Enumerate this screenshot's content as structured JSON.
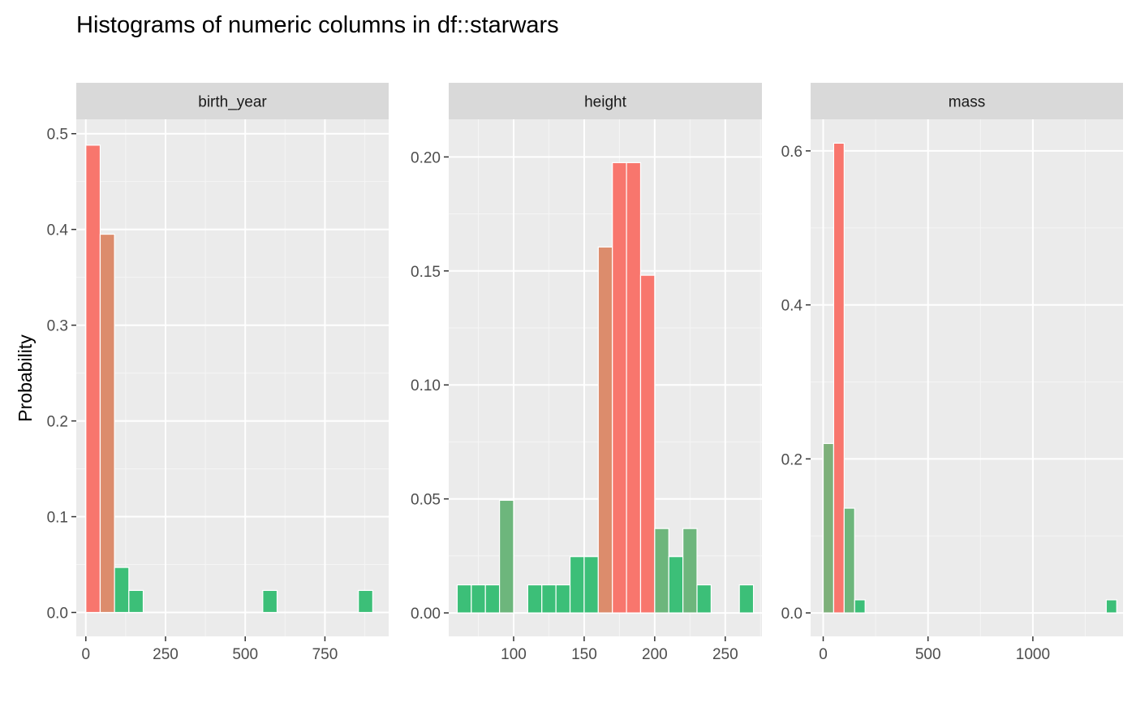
{
  "chart_data": {
    "type": "bar",
    "title": "Histograms of numeric columns in df::starwars",
    "ylabel": "Probability",
    "xlabel": "",
    "colors": {
      "high": "#F8766D",
      "mid": "#DC8C6C",
      "low": "#3CBF78",
      "mid_low": "#6DB67C",
      "mid_green": "#7EB07A"
    },
    "panels": [
      {
        "strip": "birth_year",
        "xlim": [
          -30,
          950
        ],
        "ylim": [
          -0.025,
          0.515
        ],
        "xticks": [
          0,
          250,
          500,
          750
        ],
        "xtick_labels": [
          "0",
          "250",
          "500",
          "750"
        ],
        "yticks": [
          0,
          0.1,
          0.2,
          0.3,
          0.4,
          0.5
        ],
        "ytick_labels": [
          "0.0",
          "0.1",
          "0.2",
          "0.3",
          "0.4",
          "0.5"
        ],
        "binwidth": 45,
        "bins": [
          {
            "x": 22.5,
            "y": 0.488,
            "color": "#F8766D"
          },
          {
            "x": 67.5,
            "y": 0.395,
            "color": "#DC8C6C"
          },
          {
            "x": 112.5,
            "y": 0.047,
            "color": "#3CBF78"
          },
          {
            "x": 157.5,
            "y": 0.023,
            "color": "#3CBF78"
          },
          {
            "x": 577.5,
            "y": 0.023,
            "color": "#3CBF78"
          },
          {
            "x": 877.5,
            "y": 0.023,
            "color": "#3CBF78"
          }
        ]
      },
      {
        "strip": "height",
        "xlim": [
          54,
          276
        ],
        "ylim": [
          -0.0103,
          0.2165
        ],
        "xticks": [
          100,
          150,
          200,
          250
        ],
        "xtick_labels": [
          "100",
          "150",
          "200",
          "250"
        ],
        "yticks": [
          0,
          0.05,
          0.1,
          0.15,
          0.2
        ],
        "ytick_labels": [
          "0.00",
          "0.05",
          "0.10",
          "0.15",
          "0.20"
        ],
        "binwidth": 10,
        "bins": [
          {
            "x": 65,
            "y": 0.0123,
            "color": "#3CBF78"
          },
          {
            "x": 75,
            "y": 0.0123,
            "color": "#3CBF78"
          },
          {
            "x": 85,
            "y": 0.0123,
            "color": "#3CBF78"
          },
          {
            "x": 95,
            "y": 0.0494,
            "color": "#6DB67C"
          },
          {
            "x": 115,
            "y": 0.0123,
            "color": "#3CBF78"
          },
          {
            "x": 125,
            "y": 0.0123,
            "color": "#3CBF78"
          },
          {
            "x": 135,
            "y": 0.0123,
            "color": "#3CBF78"
          },
          {
            "x": 145,
            "y": 0.0247,
            "color": "#3CBF78"
          },
          {
            "x": 155,
            "y": 0.0247,
            "color": "#3CBF78"
          },
          {
            "x": 165,
            "y": 0.1605,
            "color": "#DC8C6C"
          },
          {
            "x": 175,
            "y": 0.1975,
            "color": "#F8766D"
          },
          {
            "x": 185,
            "y": 0.1975,
            "color": "#F8766D"
          },
          {
            "x": 195,
            "y": 0.1481,
            "color": "#F8766D"
          },
          {
            "x": 205,
            "y": 0.037,
            "color": "#6DB67C"
          },
          {
            "x": 215,
            "y": 0.0247,
            "color": "#3CBF78"
          },
          {
            "x": 225,
            "y": 0.037,
            "color": "#6DB67C"
          },
          {
            "x": 235,
            "y": 0.0123,
            "color": "#3CBF78"
          },
          {
            "x": 265,
            "y": 0.0123,
            "color": "#3CBF78"
          }
        ]
      },
      {
        "strip": "mass",
        "xlim": [
          -60,
          1430
        ],
        "ylim": [
          -0.0305,
          0.641
        ],
        "xticks": [
          0,
          500,
          1000
        ],
        "xtick_labels": [
          "0",
          "500",
          "1000"
        ],
        "yticks": [
          0,
          0.2,
          0.4,
          0.6
        ],
        "ytick_labels": [
          "0.0",
          "0.2",
          "0.4",
          "0.6"
        ],
        "binwidth": 50,
        "bins": [
          {
            "x": 25,
            "y": 0.22,
            "color": "#7EB07A"
          },
          {
            "x": 75,
            "y": 0.61,
            "color": "#F8766D"
          },
          {
            "x": 125,
            "y": 0.136,
            "color": "#6DB67C"
          },
          {
            "x": 175,
            "y": 0.017,
            "color": "#3CBF78"
          },
          {
            "x": 1375,
            "y": 0.017,
            "color": "#3CBF78"
          }
        ]
      }
    ]
  }
}
